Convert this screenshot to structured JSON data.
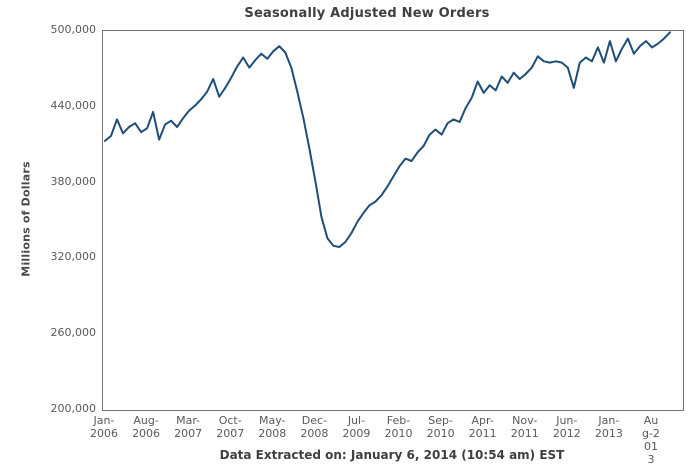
{
  "page": {
    "title": "Seasonally Adjusted New Orders",
    "footer": "Data Extracted on: January 6, 2014 (10:54 am) EST"
  },
  "chart_data": {
    "type": "line",
    "title": "Seasonally Adjusted New Orders",
    "ylabel": "Millions of Dollars",
    "xlabel": "",
    "ylim": [
      200000,
      500000
    ],
    "yticks": [
      500000,
      440000,
      380000,
      320000,
      260000,
      200000
    ],
    "ytick_labels": [
      "500,000",
      "440,000",
      "380,000",
      "320,000",
      "260,000",
      "200,000"
    ],
    "grid": false,
    "legend": "none",
    "line_color": "#1F4E79",
    "x_frequency": "monthly",
    "x_start": "Jan-2006",
    "x_end": "Nov-2013",
    "xtick_every_n_months": 7,
    "xtick_labels": [
      "Jan-2006",
      "Aug-2006",
      "Mar-2007",
      "Oct-2007",
      "May-2008",
      "Dec-2008",
      "Jul-2009",
      "Feb-2010",
      "Sep-2010",
      "Apr-2011",
      "Nov-2011",
      "Jun-2012",
      "Jan-2013",
      "Aug-2013"
    ],
    "last_xtick_wrapped": true,
    "x": [
      "Jan-2006",
      "Feb-2006",
      "Mar-2006",
      "Apr-2006",
      "May-2006",
      "Jun-2006",
      "Jul-2006",
      "Aug-2006",
      "Sep-2006",
      "Oct-2006",
      "Nov-2006",
      "Dec-2006",
      "Jan-2007",
      "Feb-2007",
      "Mar-2007",
      "Apr-2007",
      "May-2007",
      "Jun-2007",
      "Jul-2007",
      "Aug-2007",
      "Sep-2007",
      "Oct-2007",
      "Nov-2007",
      "Dec-2007",
      "Jan-2008",
      "Feb-2008",
      "Mar-2008",
      "Apr-2008",
      "May-2008",
      "Jun-2008",
      "Jul-2008",
      "Aug-2008",
      "Sep-2008",
      "Oct-2008",
      "Nov-2008",
      "Dec-2008",
      "Jan-2009",
      "Feb-2009",
      "Mar-2009",
      "Apr-2009",
      "May-2009",
      "Jun-2009",
      "Jul-2009",
      "Aug-2009",
      "Sep-2009",
      "Oct-2009",
      "Nov-2009",
      "Dec-2009",
      "Jan-2010",
      "Feb-2010",
      "Mar-2010",
      "Apr-2010",
      "May-2010",
      "Jun-2010",
      "Jul-2010",
      "Aug-2010",
      "Sep-2010",
      "Oct-2010",
      "Nov-2010",
      "Dec-2010",
      "Jan-2011",
      "Feb-2011",
      "Mar-2011",
      "Apr-2011",
      "May-2011",
      "Jun-2011",
      "Jul-2011",
      "Aug-2011",
      "Sep-2011",
      "Oct-2011",
      "Nov-2011",
      "Dec-2011",
      "Jan-2012",
      "Feb-2012",
      "Mar-2012",
      "Apr-2012",
      "May-2012",
      "Jun-2012",
      "Jul-2012",
      "Aug-2012",
      "Sep-2012",
      "Oct-2012",
      "Nov-2012",
      "Dec-2012",
      "Jan-2013",
      "Feb-2013",
      "Mar-2013",
      "Apr-2013",
      "May-2013",
      "Jun-2013",
      "Jul-2013",
      "Aug-2013",
      "Sep-2013",
      "Oct-2013",
      "Nov-2013"
    ],
    "values": [
      413000,
      417000,
      430000,
      419000,
      424000,
      427000,
      420000,
      423000,
      436000,
      414000,
      426000,
      429000,
      424000,
      431000,
      437000,
      441000,
      446000,
      452000,
      462000,
      448000,
      455000,
      463000,
      472000,
      479000,
      471000,
      477000,
      482000,
      478000,
      484000,
      488000,
      483000,
      471000,
      452000,
      431000,
      407000,
      381000,
      353000,
      336000,
      330000,
      329000,
      333000,
      340000,
      349000,
      356000,
      362000,
      365000,
      370000,
      377000,
      385000,
      393000,
      399000,
      397000,
      404000,
      409000,
      418000,
      422000,
      418000,
      427000,
      430000,
      428000,
      439000,
      447000,
      460000,
      451000,
      457000,
      453000,
      464000,
      459000,
      467000,
      462000,
      466000,
      471000,
      480000,
      476000,
      475000,
      476000,
      475000,
      471000,
      455000,
      475000,
      479000,
      476000,
      487000,
      475000,
      492000,
      476000,
      486000,
      494000,
      482000,
      488000,
      492000,
      487000,
      490000,
      494000,
      499000
    ],
    "footer": "Data Extracted on: January 6, 2014 (10:54 am) EST"
  }
}
